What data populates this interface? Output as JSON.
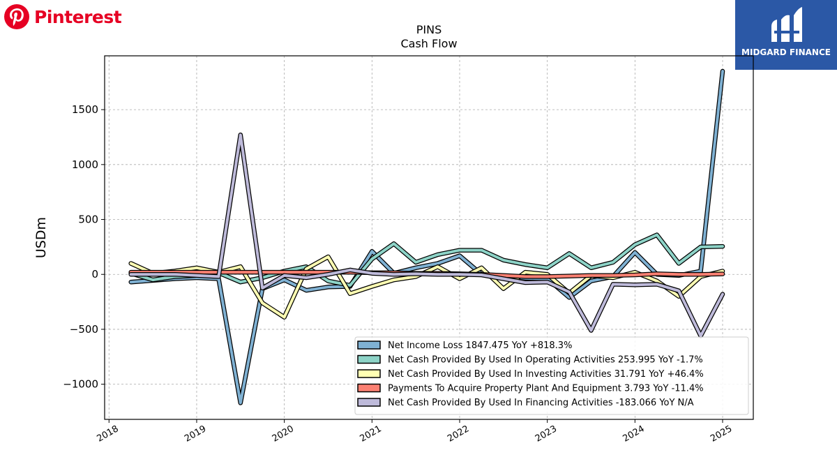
{
  "brand": {
    "name": "Pinterest",
    "color": "#e60023"
  },
  "watermark": {
    "text": "MIDGARD FINANCE",
    "bg": "#2b58a6"
  },
  "chart_data": {
    "type": "line",
    "title": "PINS",
    "subtitle": "Cash Flow",
    "ylabel": "USDm",
    "xlabel": "",
    "xlim": [
      2017.95,
      2025.35
    ],
    "ylim": [
      -1320,
      1990
    ],
    "x_ticks": [
      2018,
      2019,
      2020,
      2021,
      2022,
      2023,
      2024,
      2025
    ],
    "y_ticks": [
      -1000,
      -500,
      0,
      500,
      1000,
      1500
    ],
    "y_tick_labels": [
      "−1000",
      "−500",
      "0",
      "500",
      "1000",
      "1500"
    ],
    "grid": true,
    "legend_position": "lower-right",
    "x": [
      2018.25,
      2018.5,
      2018.75,
      2019.0,
      2019.25,
      2019.5,
      2019.75,
      2020.0,
      2020.25,
      2020.5,
      2020.75,
      2021.0,
      2021.25,
      2021.5,
      2021.75,
      2022.0,
      2022.25,
      2022.5,
      2022.75,
      2023.0,
      2023.25,
      2023.5,
      2023.75,
      2024.0,
      2024.25,
      2024.5,
      2024.75,
      2025.0
    ],
    "series": [
      {
        "name": "Net Income Loss",
        "label": "Net Income Loss  1847.475 YoY +818.3%",
        "color": "#7fb1d3",
        "values": [
          -70,
          -55,
          -40,
          -30,
          -40,
          -1170,
          -130,
          -50,
          -145,
          -115,
          -110,
          210,
          10,
          60,
          100,
          170,
          0,
          -15,
          -35,
          -40,
          -210,
          -60,
          -20,
          200,
          0,
          -10,
          30,
          1850
        ]
      },
      {
        "name": "Net Cash Provided By Used In Operating Activities",
        "label": "Net Cash Provided By Used In Operating Activities  253.995 YoY -1.7%",
        "color": "#8dd3c7",
        "values": [
          10,
          -50,
          -20,
          -10,
          15,
          -70,
          -30,
          30,
          70,
          -60,
          -100,
          140,
          280,
          110,
          180,
          220,
          220,
          130,
          90,
          60,
          190,
          60,
          110,
          270,
          360,
          100,
          250,
          255
        ]
      },
      {
        "name": "Net Cash Provided By Used In Investing Activities",
        "label": "Net Cash Provided By Used In Investing Activities  31.791 YoY +46.4%",
        "color": "#ffffb3",
        "values": [
          100,
          10,
          30,
          60,
          20,
          70,
          -260,
          -390,
          50,
          160,
          -175,
          -110,
          -50,
          -20,
          70,
          -40,
          60,
          -130,
          20,
          0,
          -170,
          -10,
          -30,
          20,
          -60,
          -200,
          -20,
          30
        ]
      },
      {
        "name": "Payments To Acquire Property Plant And Equipment",
        "label": "Payments To Acquire Property Plant And Equipment  3.793 YoY -11.4%",
        "color": "#fb8072",
        "values": [
          20,
          20,
          20,
          20,
          20,
          20,
          20,
          20,
          20,
          20,
          20,
          15,
          15,
          10,
          10,
          5,
          0,
          -10,
          -20,
          -20,
          -15,
          -10,
          -10,
          -5,
          5,
          0,
          0,
          4
        ]
      },
      {
        "name": "Net Cash Provided By Used In Financing Activities",
        "label": "Net Cash Provided By Used In Financing Activities  -183.066 YoY N/A",
        "color": "#bebada",
        "values": [
          0,
          0,
          0,
          -10,
          -20,
          1270,
          -125,
          -10,
          -30,
          0,
          40,
          10,
          0,
          5,
          0,
          0,
          -5,
          -40,
          -75,
          -70,
          -160,
          -510,
          -90,
          -95,
          -90,
          -150,
          -560,
          -180
        ]
      }
    ]
  }
}
